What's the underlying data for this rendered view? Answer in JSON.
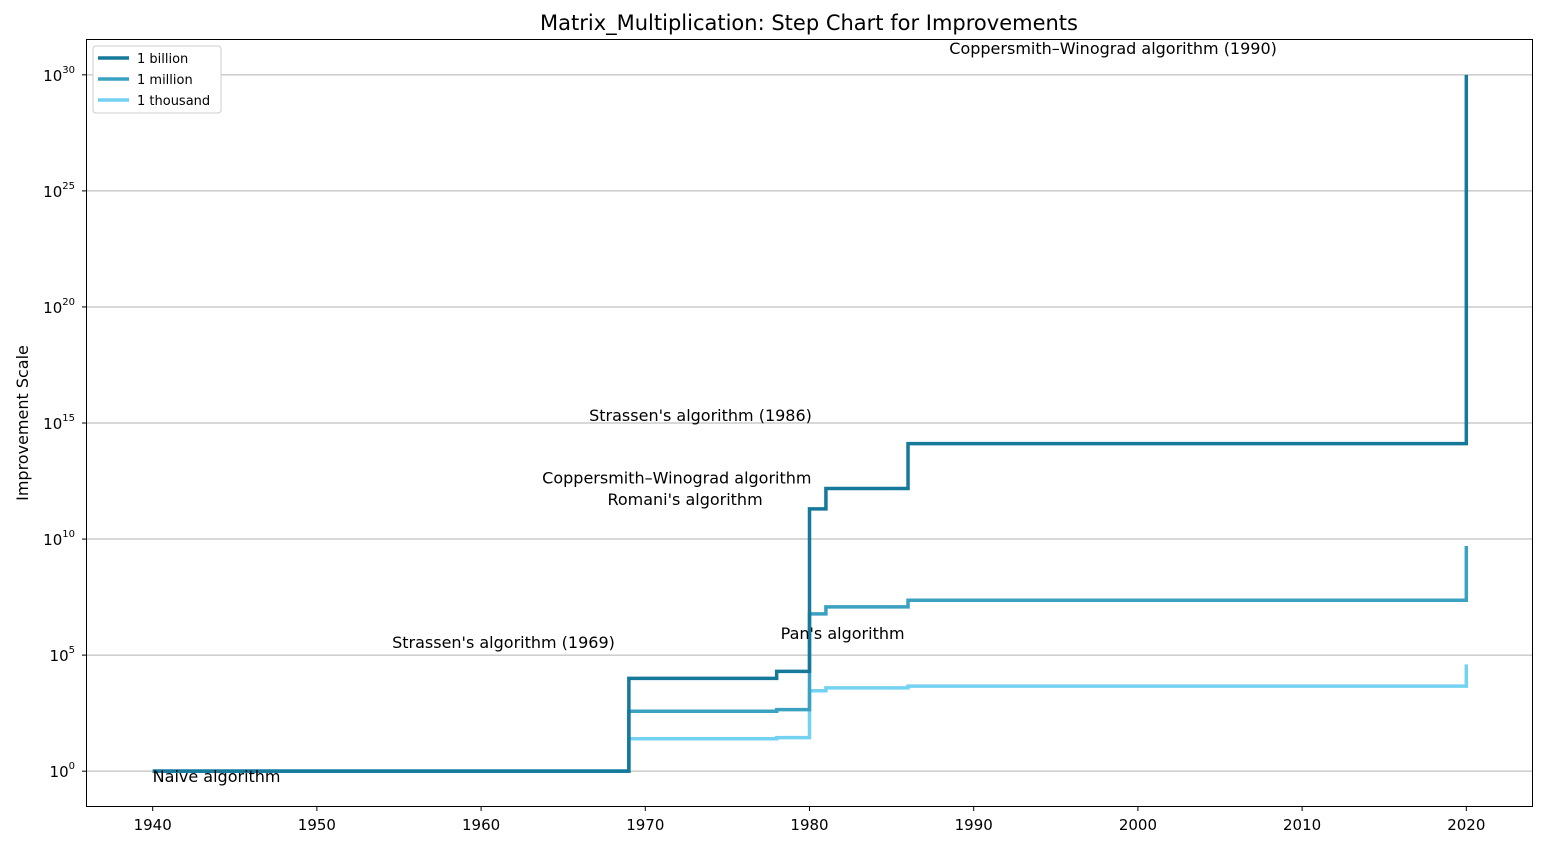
{
  "chart_data": {
    "type": "line",
    "step": true,
    "title": "Matrix_Multiplication: Step Chart for Improvements",
    "xlabel": "",
    "ylabel": "Improvement Scale",
    "xlim": [
      1936,
      2024
    ],
    "ylim_exponent": [
      -1.5,
      31.5
    ],
    "yscale": "log",
    "grid": "horizontal",
    "legend_position": "top-left",
    "x_ticks": [
      1940,
      1950,
      1960,
      1970,
      1980,
      1990,
      2000,
      2010,
      2020
    ],
    "y_ticks": [
      {
        "base": "10",
        "exp": "0",
        "value": 1
      },
      {
        "base": "10",
        "exp": "5",
        "value": 100000
      },
      {
        "base": "10",
        "exp": "10",
        "value": 10000000000
      },
      {
        "base": "10",
        "exp": "15",
        "value": 1000000000000000.0
      },
      {
        "base": "10",
        "exp": "20",
        "value": 1e+20
      },
      {
        "base": "10",
        "exp": "25",
        "value": 1e+25
      },
      {
        "base": "10",
        "exp": "30",
        "value": 1e+30
      }
    ],
    "series": [
      {
        "name": "1 billion",
        "color": "#17799a",
        "x": [
          1940,
          1969,
          1978,
          1980,
          1981,
          1986,
          2020
        ],
        "y": [
          1,
          10000,
          20000,
          200000000000.0,
          1500000000000.0,
          130000000000000.0,
          1e+30
        ],
        "y_end": 1e+30
      },
      {
        "name": "1 million",
        "color": "#3aa1c0",
        "x": [
          1940,
          1969,
          1978,
          1980,
          1981,
          1986,
          2020
        ],
        "y": [
          1,
          380,
          450,
          6000000.0,
          12000000.0,
          23000000.0,
          5000000000.0
        ],
        "y_end": 5000000000.0
      },
      {
        "name": "1 thousand",
        "color": "#73d2f1",
        "x": [
          1940,
          1969,
          1978,
          1980,
          1981,
          1986,
          2020
        ],
        "y": [
          1,
          25,
          28,
          2900,
          3900,
          4600,
          40000
        ],
        "y_end": 40000
      }
    ],
    "annotations": [
      {
        "text": "Naive algorithm",
        "x": 1940,
        "y": 0.35
      },
      {
        "text": "Strassen's algorithm (1969)",
        "x": 1969,
        "y": 200000
      },
      {
        "text": "Pan's algorithm",
        "x": 1978,
        "y": 500000
      },
      {
        "text": "Romani's algorithm",
        "x": 1978,
        "y": 300000000000.0
      },
      {
        "text": "Coppersmith–Winograd algorithm",
        "x": 1980,
        "y": 2500000000000.0
      },
      {
        "text": "Strassen's algorithm (1986)",
        "x": 1981,
        "y": 1200000000000000.0
      },
      {
        "text": "Coppersmith–Winograd algorithm (1990)",
        "x": 1989,
        "y": 8e+30
      }
    ]
  }
}
